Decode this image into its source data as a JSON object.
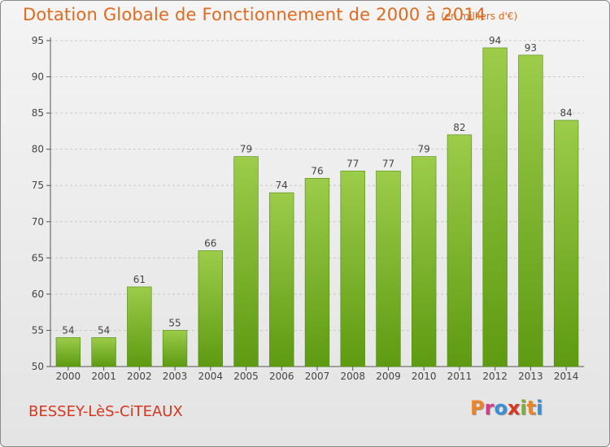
{
  "header": {
    "title": "Dotation Globale de Fonctionnement de 2000 à 2014",
    "subtitle": "(en milliers d'€)"
  },
  "footer": {
    "commune": "BESSEY-LèS-CiTEAUX",
    "logo_text": "Proxiti",
    "logo_colors": [
      "#e8862a",
      "#d73a8b",
      "#3a8fd6",
      "#d8361f",
      "#7ab03a",
      "#e8862a",
      "#3a8fd6"
    ]
  },
  "colors": {
    "bar_top": "#9ccc4a",
    "bar_bottom": "#5e9a12",
    "title": "#e26a1e",
    "grid": "#c8c8c8"
  },
  "chart_data": {
    "type": "bar",
    "title": "Dotation Globale de Fonctionnement de 2000 à 2014",
    "subtitle": "(en milliers d'€)",
    "categories": [
      "2000",
      "2001",
      "2002",
      "2003",
      "2004",
      "2005",
      "2006",
      "2007",
      "2008",
      "2009",
      "2010",
      "2011",
      "2012",
      "2013",
      "2014"
    ],
    "values": [
      54,
      54,
      61,
      55,
      66,
      79,
      74,
      76,
      77,
      77,
      79,
      82,
      94,
      93,
      84
    ],
    "ylim": [
      50,
      95
    ],
    "yticks": [
      50,
      55,
      60,
      65,
      70,
      75,
      80,
      85,
      90,
      95
    ],
    "grid": true,
    "data_labels": true,
    "xlabel": "",
    "ylabel": ""
  }
}
